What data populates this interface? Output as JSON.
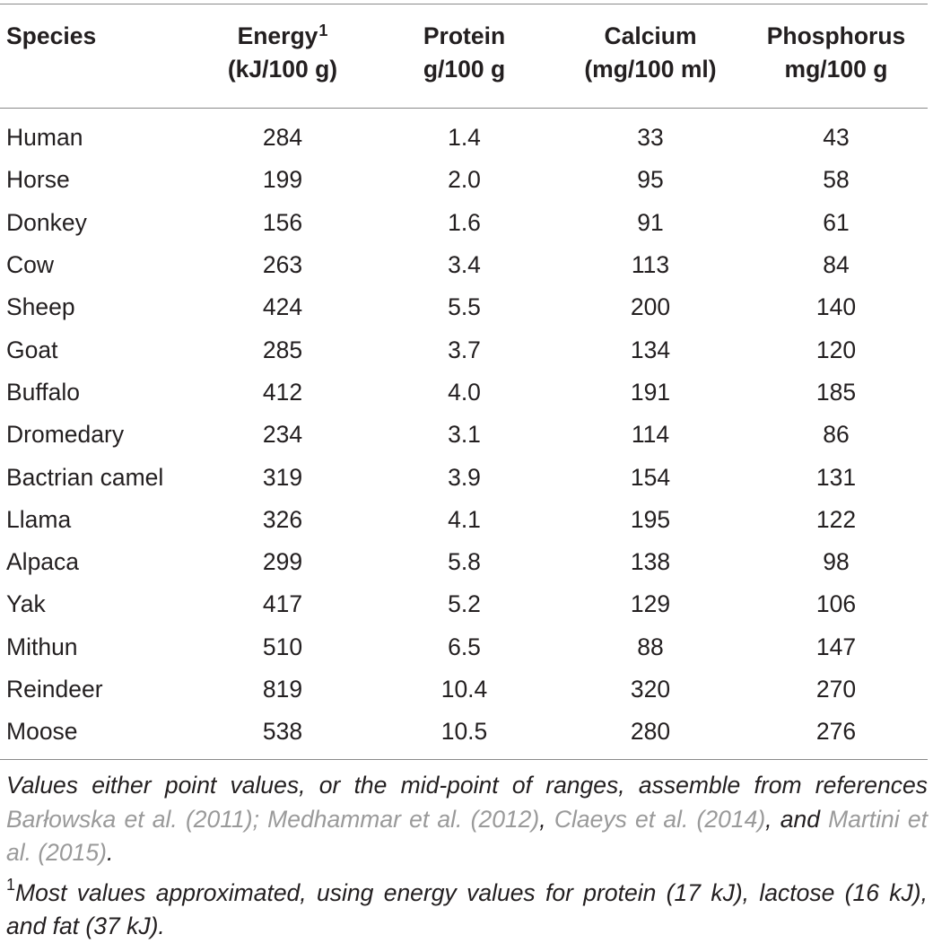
{
  "table": {
    "headers": [
      {
        "line1": "Species",
        "line2": "",
        "sup": ""
      },
      {
        "line1": "Energy",
        "line2": "(kJ/100 g)",
        "sup": "1"
      },
      {
        "line1": "Protein",
        "line2": "g/100 g",
        "sup": ""
      },
      {
        "line1": "Calcium",
        "line2": "(mg/100 ml)",
        "sup": ""
      },
      {
        "line1": "Phosphorus",
        "line2": "mg/100 g",
        "sup": ""
      }
    ],
    "rows": [
      [
        "Human",
        "284",
        "1.4",
        "33",
        "43"
      ],
      [
        "Horse",
        "199",
        "2.0",
        "95",
        "58"
      ],
      [
        "Donkey",
        "156",
        "1.6",
        "91",
        "61"
      ],
      [
        "Cow",
        "263",
        "3.4",
        "113",
        "84"
      ],
      [
        "Sheep",
        "424",
        "5.5",
        "200",
        "140"
      ],
      [
        "Goat",
        "285",
        "3.7",
        "134",
        "120"
      ],
      [
        "Buffalo",
        "412",
        "4.0",
        "191",
        "185"
      ],
      [
        "Dromedary",
        "234",
        "3.1",
        "114",
        "86"
      ],
      [
        "Bactrian camel",
        "319",
        "3.9",
        "154",
        "131"
      ],
      [
        "Llama",
        "326",
        "4.1",
        "195",
        "122"
      ],
      [
        "Alpaca",
        "299",
        "5.8",
        "138",
        "98"
      ],
      [
        "Yak",
        "417",
        "5.2",
        "129",
        "106"
      ],
      [
        "Mithun",
        "510",
        "6.5",
        "88",
        "147"
      ],
      [
        "Reindeer",
        "819",
        "10.4",
        "320",
        "270"
      ],
      [
        "Moose",
        "538",
        "10.5",
        "280",
        "276"
      ]
    ]
  },
  "notes": {
    "values_intro": "Values either point values, or the mid-point of ranges, assemble from references ",
    "ref1": "Barłowska et al. (2011); Medhammar et al. (2012)",
    "sep1": ", ",
    "ref2": "Claeys et al. (2014)",
    "sep2": ", and ",
    "ref3": "Martini et al. (2015)",
    "end": ".",
    "footnote_mark": "1",
    "footnote_text": "Most values approximated, using energy values for protein (17 kJ), lactose (16 kJ), and fat (37 kJ)."
  }
}
